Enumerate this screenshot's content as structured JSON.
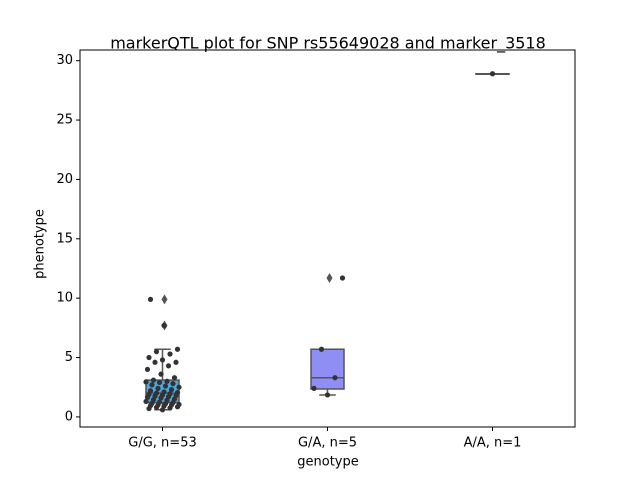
{
  "chart_data": {
    "type": "box",
    "title": "markerQTL plot for SNP rs55649028 and marker_3518",
    "xlabel": "genotype",
    "ylabel": "phenotype",
    "categories": [
      "G/G, n=53",
      "G/A, n=5",
      "A/A, n=1"
    ],
    "ylim": [
      -0.85,
      30.9
    ],
    "yticks": [
      0,
      5,
      10,
      15,
      20,
      25,
      30
    ],
    "boxes": [
      {
        "color": "#4aa8e0",
        "whislo": 0.6,
        "q1": 1.2,
        "med": 2.0,
        "q3": 3.1,
        "whishi": 5.7,
        "fliers": [
          7.7,
          9.9
        ]
      },
      {
        "color": "#8e8ef5",
        "whislo": 1.85,
        "q1": 2.35,
        "med": 3.3,
        "q3": 5.7,
        "whishi": 5.7,
        "fliers": [
          11.7
        ]
      },
      {
        "color": "#d9a0f0",
        "whislo": 28.9,
        "q1": 28.9,
        "med": 28.9,
        "q3": 28.9,
        "whishi": 28.9,
        "fliers": []
      }
    ],
    "points": [
      [
        0.6,
        0.7,
        0.75,
        0.8,
        0.85,
        0.9,
        0.95,
        1.0,
        1.0,
        1.05,
        1.1,
        1.15,
        1.2,
        1.25,
        1.3,
        1.4,
        1.45,
        1.5,
        1.6,
        1.65,
        1.7,
        1.75,
        1.8,
        1.85,
        1.9,
        1.95,
        2.0,
        2.05,
        2.1,
        2.2,
        2.3,
        2.4,
        2.5,
        2.6,
        2.7,
        2.8,
        2.9,
        2.95,
        3.0,
        3.1,
        3.3,
        3.6,
        4.0,
        4.3,
        4.6,
        4.6,
        4.8,
        5.0,
        5.3,
        5.5,
        5.7,
        7.7,
        9.9
      ],
      [
        1.85,
        2.4,
        3.3,
        5.7,
        11.7
      ],
      [
        28.9
      ]
    ],
    "point_color": "#333333"
  }
}
